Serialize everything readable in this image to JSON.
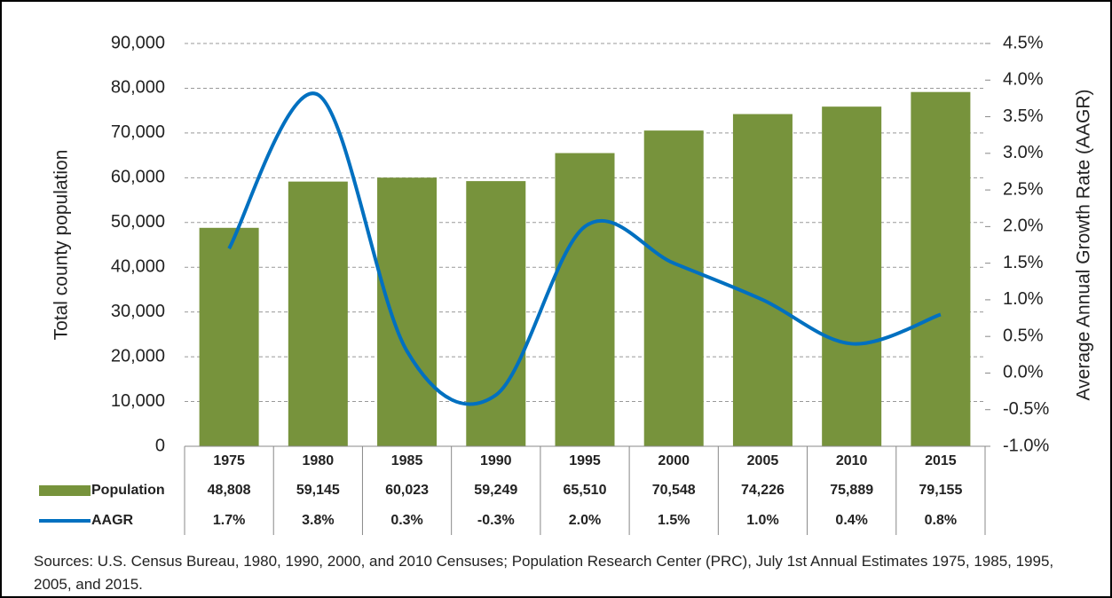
{
  "chart_data": {
    "type": "bar",
    "categories": [
      "1975",
      "1980",
      "1985",
      "1990",
      "1995",
      "2000",
      "2005",
      "2010",
      "2015"
    ],
    "series": [
      {
        "name": "Population",
        "type": "bar",
        "color": "#77933c",
        "values": [
          48808,
          59145,
          60023,
          59249,
          65510,
          70548,
          74226,
          75889,
          79155
        ],
        "value_labels": [
          "48,808",
          "59,145",
          "60,023",
          "59,249",
          "65,510",
          "70,548",
          "74,226",
          "75,889",
          "79,155"
        ]
      },
      {
        "name": "AAGR",
        "type": "line",
        "axis": "y2",
        "color": "#0070c0",
        "values": [
          1.7,
          3.8,
          0.3,
          -0.3,
          2.0,
          1.5,
          1.0,
          0.4,
          0.8
        ],
        "value_labels": [
          "1.7%",
          "3.8%",
          "0.3%",
          "-0.3%",
          "2.0%",
          "1.5%",
          "1.0%",
          "0.4%",
          "0.8%"
        ]
      }
    ],
    "ylabel": "Total county population",
    "y2label": "Average Annual Growth Rate (AAGR)",
    "ylim": [
      0,
      90000
    ],
    "yticks": [
      0,
      {
        "value": 10000,
        "label": "10,000"
      },
      {
        "value": 20000,
        "label": "20,000"
      },
      {
        "value": 30000,
        "label": "30,000"
      },
      {
        "value": 40000,
        "label": "40,000"
      },
      {
        "value": 50000,
        "label": "50,000"
      },
      {
        "value": 60000,
        "label": "60,000"
      },
      {
        "value": 70000,
        "label": "70,000"
      },
      {
        "value": 80000,
        "label": "80,000"
      },
      {
        "value": 90000,
        "label": "90,000"
      }
    ],
    "y2lim": [
      -1.0,
      4.5
    ],
    "y2ticks": [
      {
        "value": -1.0,
        "label": "-1.0%"
      },
      {
        "value": -0.5,
        "label": "-0.5%"
      },
      {
        "value": 0,
        "label": "0.0%"
      },
      {
        "value": 0.5,
        "label": "0.5%"
      },
      {
        "value": 1.0,
        "label": "1.0%"
      },
      {
        "value": 1.5,
        "label": "1.5%"
      },
      {
        "value": 2.0,
        "label": "2.0%"
      },
      {
        "value": 2.5,
        "label": "2.5%"
      },
      {
        "value": 3.0,
        "label": "3.0%"
      },
      {
        "value": 3.5,
        "label": "3.5%"
      },
      {
        "value": 4.0,
        "label": "4.0%"
      },
      {
        "value": 4.5,
        "label": "4.5%"
      }
    ],
    "grid": true,
    "source": "Sources: U.S. Census Bureau, 1980, 1990, 2000, and 2010 Censuses; Population Research Center (PRC), July 1st Annual Estimates 1975, 1985, 1995, 2005, and 2015."
  }
}
